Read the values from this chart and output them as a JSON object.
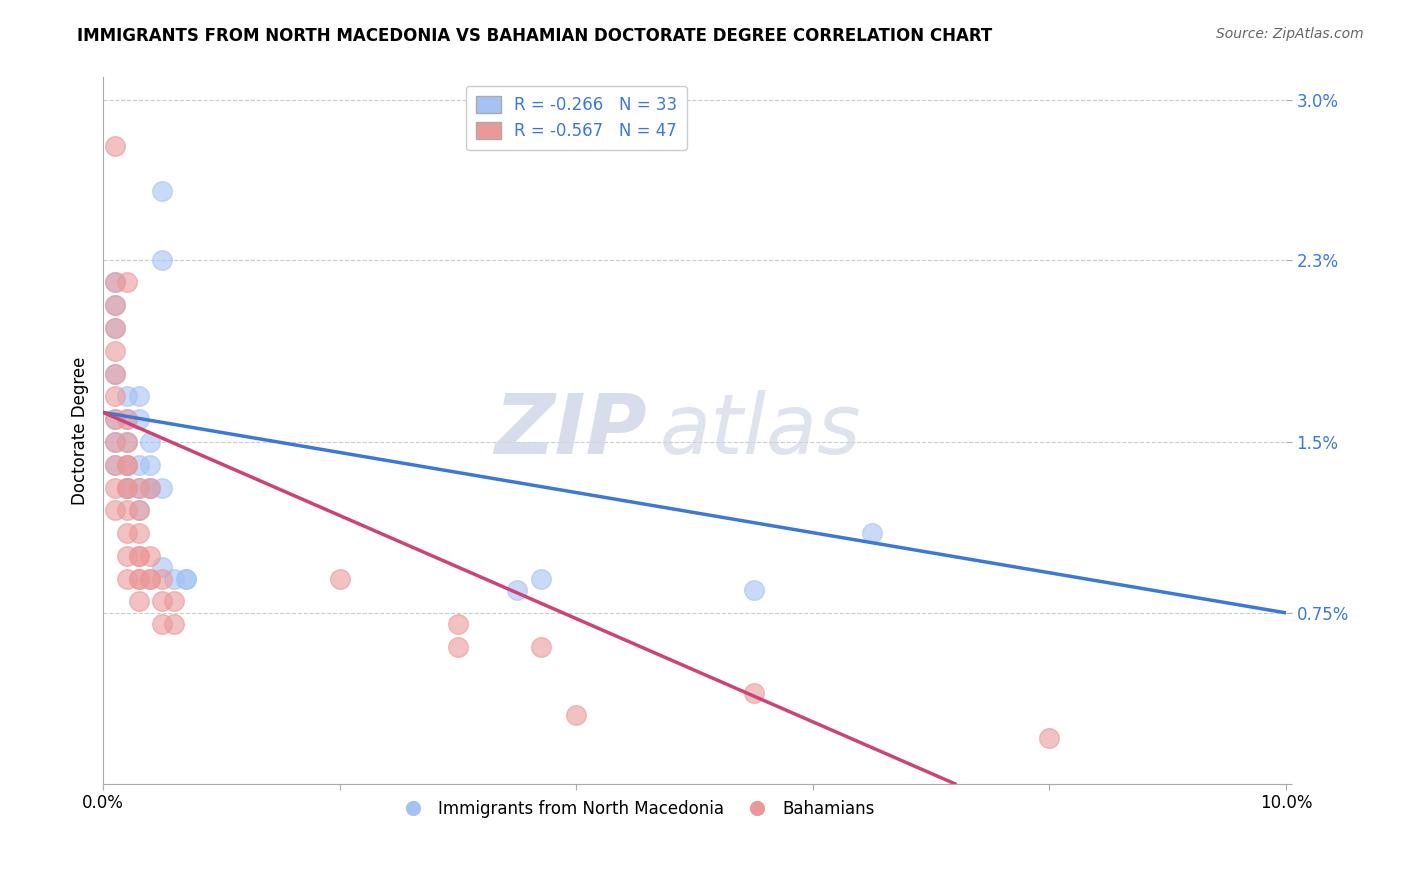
{
  "title": "IMMIGRANTS FROM NORTH MACEDONIA VS BAHAMIAN DOCTORATE DEGREE CORRELATION CHART",
  "source": "Source: ZipAtlas.com",
  "ylabel": "Doctorate Degree",
  "xlim": [
    0.0,
    0.1
  ],
  "ylim": [
    0.0,
    0.031
  ],
  "yticks": [
    0.0,
    0.0075,
    0.015,
    0.023,
    0.03
  ],
  "ytick_labels": [
    "",
    "0.75%",
    "1.5%",
    "2.3%",
    "3.0%"
  ],
  "xticks": [
    0.0,
    0.02,
    0.04,
    0.06,
    0.08,
    0.1
  ],
  "xtick_labels": [
    "0.0%",
    "",
    "",
    "",
    "",
    "10.0%"
  ],
  "legend_blue_label": "R = -0.266   N = 33",
  "legend_pink_label": "R = -0.567   N = 47",
  "legend1_label": "Immigrants from North Macedonia",
  "legend2_label": "Bahamians",
  "color_blue": "#a4c2f4",
  "color_pink": "#ea9999",
  "color_blue_line": "#3c78d8",
  "color_pink_line": "#cc4477",
  "watermark_zip": "ZIP",
  "watermark_atlas": "atlas",
  "blue_points": [
    [
      0.005,
      0.026
    ],
    [
      0.001,
      0.022
    ],
    [
      0.001,
      0.021
    ],
    [
      0.001,
      0.02
    ],
    [
      0.001,
      0.018
    ],
    [
      0.001,
      0.016
    ],
    [
      0.001,
      0.015
    ],
    [
      0.001,
      0.014
    ],
    [
      0.002,
      0.017
    ],
    [
      0.002,
      0.016
    ],
    [
      0.002,
      0.015
    ],
    [
      0.002,
      0.014
    ],
    [
      0.002,
      0.013
    ],
    [
      0.002,
      0.013
    ],
    [
      0.003,
      0.017
    ],
    [
      0.003,
      0.016
    ],
    [
      0.003,
      0.014
    ],
    [
      0.003,
      0.013
    ],
    [
      0.003,
      0.012
    ],
    [
      0.004,
      0.015
    ],
    [
      0.004,
      0.014
    ],
    [
      0.004,
      0.013
    ],
    [
      0.004,
      0.013
    ],
    [
      0.005,
      0.023
    ],
    [
      0.005,
      0.013
    ],
    [
      0.005,
      0.0095
    ],
    [
      0.006,
      0.009
    ],
    [
      0.007,
      0.009
    ],
    [
      0.007,
      0.009
    ],
    [
      0.035,
      0.0085
    ],
    [
      0.037,
      0.009
    ],
    [
      0.055,
      0.0085
    ],
    [
      0.065,
      0.011
    ]
  ],
  "pink_points": [
    [
      0.001,
      0.028
    ],
    [
      0.001,
      0.022
    ],
    [
      0.001,
      0.021
    ],
    [
      0.001,
      0.02
    ],
    [
      0.001,
      0.019
    ],
    [
      0.001,
      0.018
    ],
    [
      0.001,
      0.017
    ],
    [
      0.001,
      0.016
    ],
    [
      0.001,
      0.015
    ],
    [
      0.001,
      0.014
    ],
    [
      0.001,
      0.013
    ],
    [
      0.001,
      0.012
    ],
    [
      0.002,
      0.022
    ],
    [
      0.002,
      0.016
    ],
    [
      0.002,
      0.015
    ],
    [
      0.002,
      0.014
    ],
    [
      0.002,
      0.014
    ],
    [
      0.002,
      0.013
    ],
    [
      0.002,
      0.013
    ],
    [
      0.002,
      0.012
    ],
    [
      0.002,
      0.011
    ],
    [
      0.002,
      0.01
    ],
    [
      0.002,
      0.009
    ],
    [
      0.003,
      0.013
    ],
    [
      0.003,
      0.012
    ],
    [
      0.003,
      0.011
    ],
    [
      0.003,
      0.01
    ],
    [
      0.003,
      0.01
    ],
    [
      0.003,
      0.009
    ],
    [
      0.003,
      0.009
    ],
    [
      0.003,
      0.008
    ],
    [
      0.004,
      0.013
    ],
    [
      0.004,
      0.01
    ],
    [
      0.004,
      0.009
    ],
    [
      0.004,
      0.009
    ],
    [
      0.005,
      0.009
    ],
    [
      0.005,
      0.008
    ],
    [
      0.005,
      0.007
    ],
    [
      0.006,
      0.008
    ],
    [
      0.006,
      0.007
    ],
    [
      0.02,
      0.009
    ],
    [
      0.03,
      0.007
    ],
    [
      0.03,
      0.006
    ],
    [
      0.037,
      0.006
    ],
    [
      0.04,
      0.003
    ],
    [
      0.055,
      0.004
    ],
    [
      0.08,
      0.002
    ]
  ],
  "blue_line_x": [
    0.0,
    0.1
  ],
  "blue_line_y": [
    0.0163,
    0.0075
  ],
  "pink_line_x": [
    0.0,
    0.072
  ],
  "pink_line_y": [
    0.0163,
    0.0
  ]
}
